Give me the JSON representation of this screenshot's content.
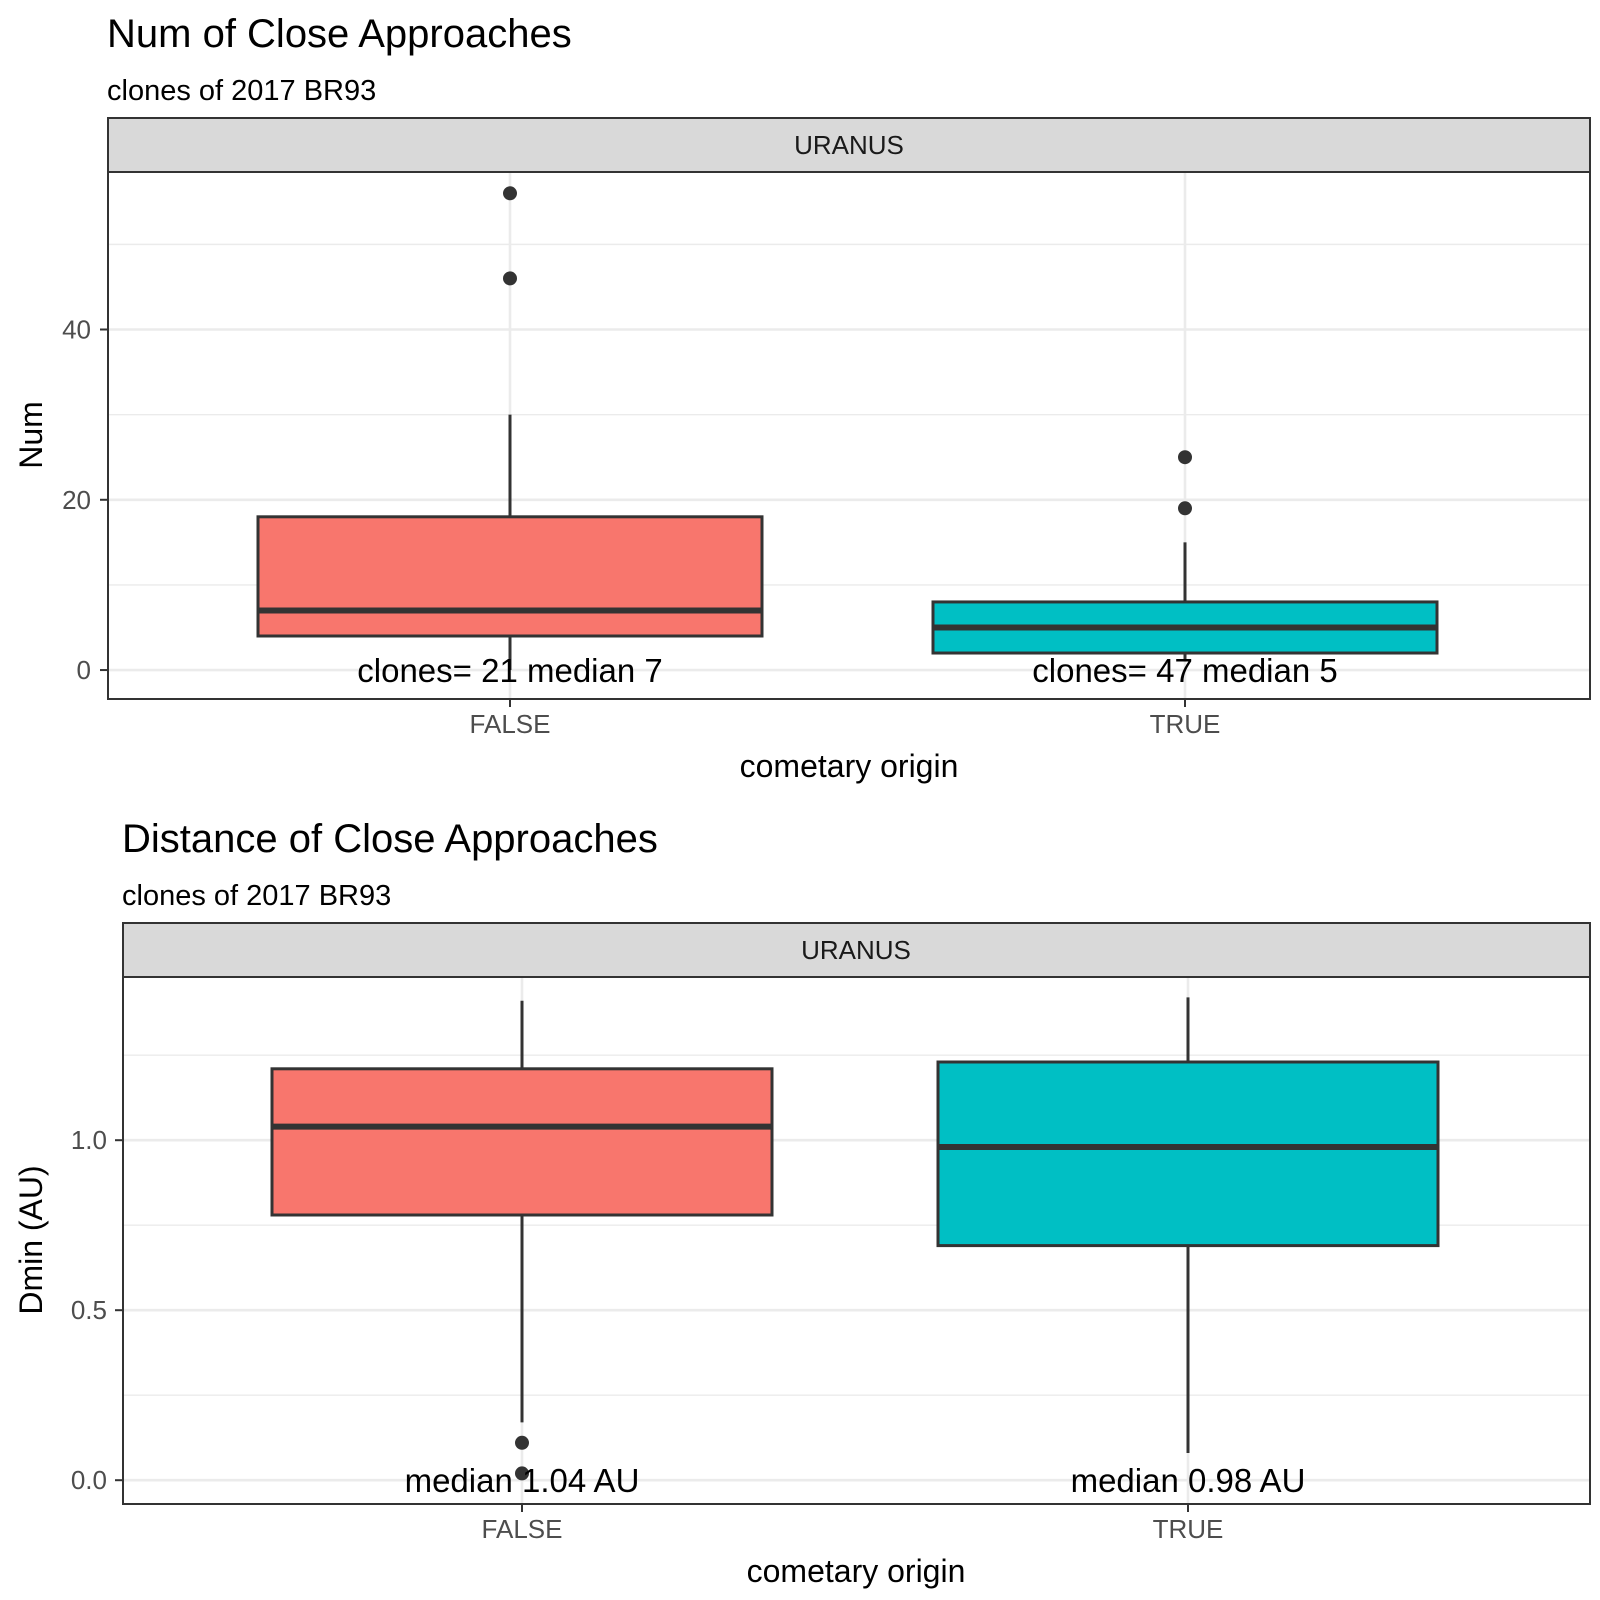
{
  "chart_data": [
    {
      "type": "boxplot",
      "title": "Num of Close Approaches",
      "subtitle": "clones of 2017 BR93",
      "facet": "URANUS",
      "xlabel": "cometary origin",
      "ylabel": "Num",
      "categories": [
        "FALSE",
        "TRUE"
      ],
      "ylim": [
        -3.4,
        58.5
      ],
      "yticks": [
        0,
        20,
        40
      ],
      "ytick_labels": [
        "0",
        "20",
        "40"
      ],
      "grid": true,
      "fills": [
        "#F8766D",
        "#00BFC4"
      ],
      "boxes": [
        {
          "category": "FALSE",
          "q1": 4,
          "median": 7,
          "q3": 18,
          "whisker_low": 0,
          "whisker_high": 30,
          "outliers": [
            46,
            56
          ]
        },
        {
          "category": "TRUE",
          "q1": 2,
          "median": 5,
          "q3": 8,
          "whisker_low": 1,
          "whisker_high": 15,
          "outliers": [
            19,
            25
          ]
        }
      ],
      "annotations": [
        {
          "category": "FALSE",
          "y": 0,
          "text": "clones= 21 median 7"
        },
        {
          "category": "TRUE",
          "y": 0,
          "text": "clones= 47 median 5"
        }
      ]
    },
    {
      "type": "boxplot",
      "title": "Distance of Close Approaches",
      "subtitle": "clones of 2017 BR93",
      "facet": "URANUS",
      "xlabel": "cometary origin",
      "ylabel": "Dmin (AU)",
      "categories": [
        "FALSE",
        "TRUE"
      ],
      "ylim": [
        -0.07,
        1.48
      ],
      "yticks": [
        0.0,
        0.5,
        1.0
      ],
      "ytick_labels": [
        "0.0",
        "0.5",
        "1.0"
      ],
      "grid": true,
      "fills": [
        "#F8766D",
        "#00BFC4"
      ],
      "boxes": [
        {
          "category": "FALSE",
          "q1": 0.78,
          "median": 1.04,
          "q3": 1.21,
          "whisker_low": 0.17,
          "whisker_high": 1.41,
          "outliers": [
            0.02,
            0.11
          ]
        },
        {
          "category": "TRUE",
          "q1": 0.69,
          "median": 0.98,
          "q3": 1.23,
          "whisker_low": 0.08,
          "whisker_high": 1.42,
          "outliers": []
        }
      ],
      "annotations": [
        {
          "category": "FALSE",
          "y": 0,
          "text": "median 1.04 AU"
        },
        {
          "category": "TRUE",
          "y": 0,
          "text": "median 0.98 AU"
        }
      ]
    }
  ]
}
